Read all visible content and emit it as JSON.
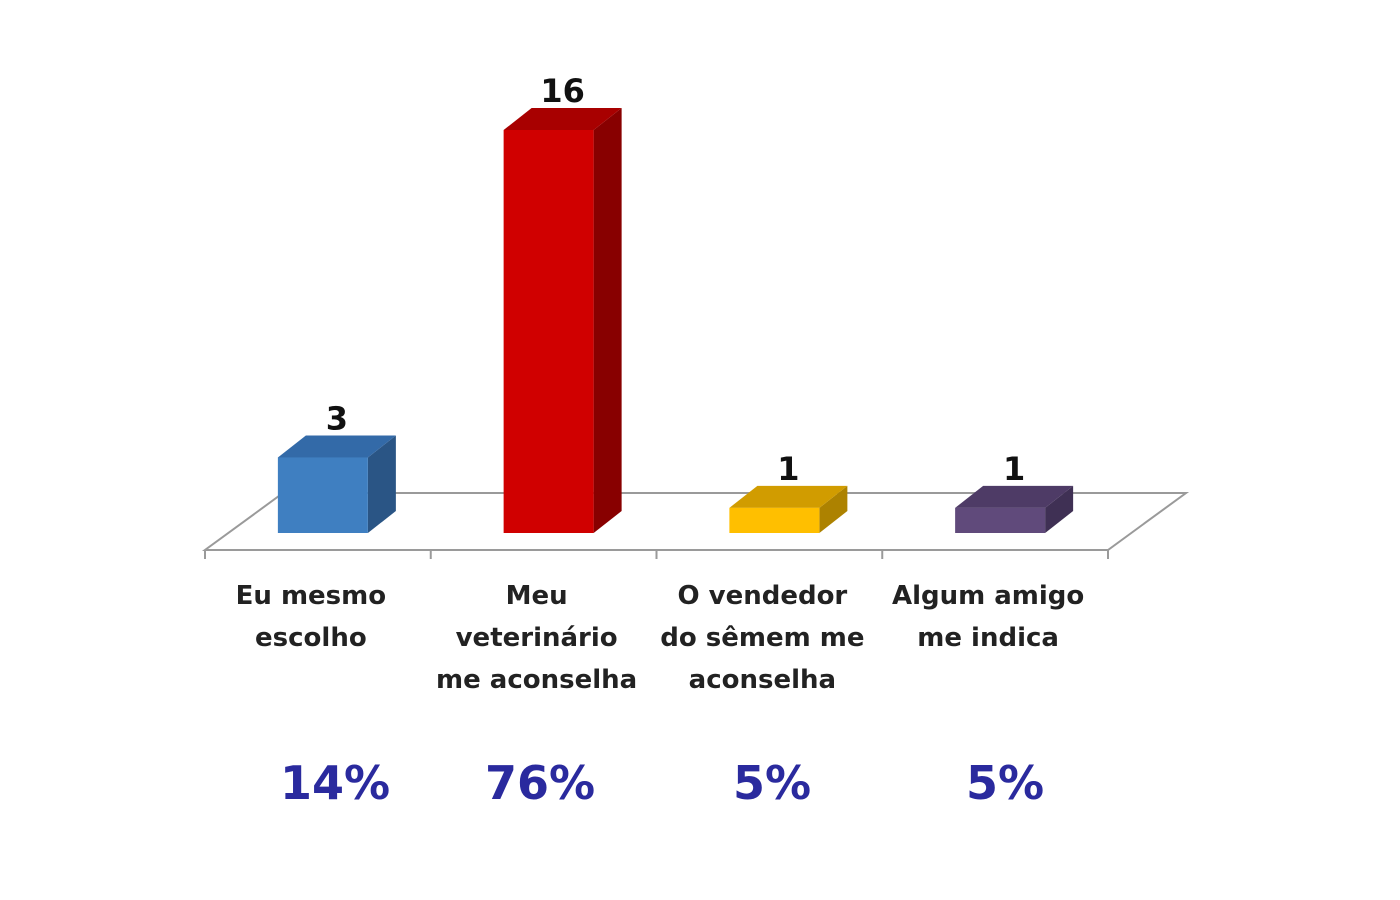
{
  "chart_data": {
    "type": "bar",
    "style": "3d",
    "title": "",
    "xlabel": "",
    "ylabel": "",
    "ylim": [
      0,
      16
    ],
    "grid": false,
    "legend": "none",
    "categories": [
      [
        "Eu mesmo",
        "escolho"
      ],
      [
        "Meu",
        "veterinário",
        "me aconselha"
      ],
      [
        "O vendedor",
        "do sêmem me",
        "aconselha"
      ],
      [
        "Algum amigo",
        "me indica"
      ]
    ],
    "values": [
      3,
      16,
      1,
      1
    ],
    "data_labels": [
      "3",
      "16",
      "1",
      "1"
    ],
    "percentages": [
      "14%",
      "76%",
      "5%",
      "5%"
    ],
    "colors": [
      {
        "front": "#3f7fc1",
        "top": "#336aa8",
        "side": "#2a5585"
      },
      {
        "front": "#d00000",
        "top": "#a80000",
        "side": "#880000"
      },
      {
        "front": "#ffbf00",
        "top": "#d19c00",
        "side": "#ad8200"
      },
      {
        "front": "#604a7b",
        "top": "#4e3b66",
        "side": "#3f3054"
      }
    ],
    "percentage_color": "#2a2a9e"
  }
}
